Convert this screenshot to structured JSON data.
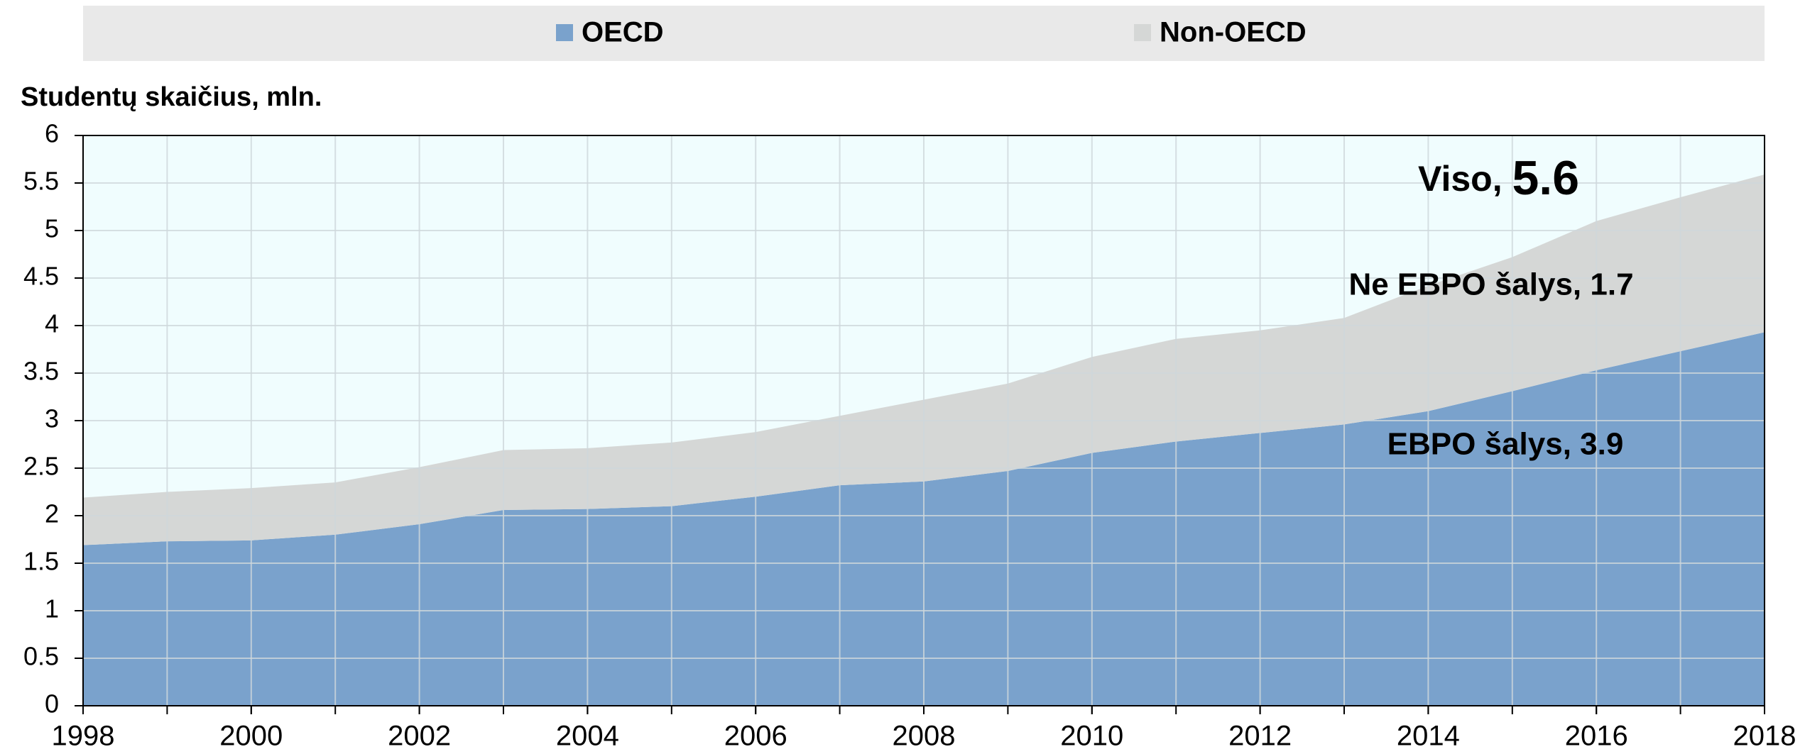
{
  "chart_data": {
    "type": "stacked_area",
    "ylabel": "Studentų skaičius, mln.",
    "x": [
      1998,
      1999,
      2000,
      2001,
      2002,
      2003,
      2004,
      2005,
      2006,
      2007,
      2008,
      2009,
      2010,
      2011,
      2012,
      2013,
      2014,
      2015,
      2016,
      2017,
      2018
    ],
    "series": [
      {
        "name": "OECD",
        "color": "#7aa2cc",
        "values": [
          1.69,
          1.73,
          1.74,
          1.8,
          1.91,
          2.06,
          2.07,
          2.1,
          2.2,
          2.32,
          2.36,
          2.47,
          2.66,
          2.78,
          2.87,
          2.96,
          3.1,
          3.31,
          3.53,
          3.73,
          3.93
        ]
      },
      {
        "name": "Non-OECD",
        "color": "#d5d7d6",
        "values": [
          0.5,
          0.52,
          0.55,
          0.55,
          0.6,
          0.63,
          0.64,
          0.67,
          0.68,
          0.73,
          0.86,
          0.92,
          1.01,
          1.08,
          1.08,
          1.12,
          1.32,
          1.41,
          1.57,
          1.62,
          1.66
        ]
      }
    ],
    "xlim": [
      1998,
      2018
    ],
    "xticks": [
      1998,
      2000,
      2002,
      2004,
      2006,
      2008,
      2010,
      2012,
      2014,
      2016,
      2018
    ],
    "ylim": [
      0,
      6
    ],
    "yticks": [
      0,
      0.5,
      1,
      1.5,
      2,
      2.5,
      3,
      3.5,
      4,
      4.5,
      5,
      5.5,
      6
    ],
    "grid": true,
    "legend": "top",
    "annotations": [
      {
        "text": "Viso, ",
        "emphasis": "5.6"
      },
      {
        "text": "Ne EBPO šalys, 1.7"
      },
      {
        "text": "EBPO šalys, 3.9"
      }
    ]
  }
}
